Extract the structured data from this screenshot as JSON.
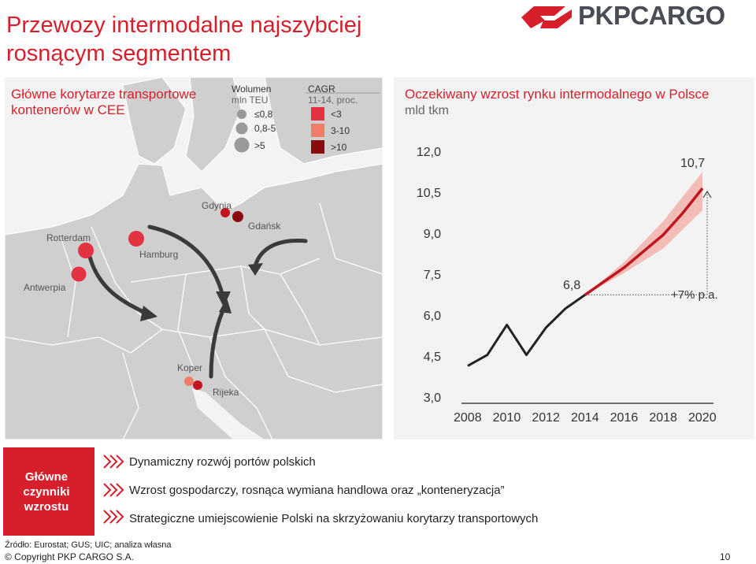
{
  "header": {
    "title": "Przewozy intermodalne najszybciej rosnącym segmentem",
    "logo_text": "PKPCARGO"
  },
  "map_panel": {
    "heading": "Główne korytarze transportowe kontenerów w CEE",
    "legend": {
      "volume_title": "Wolumen",
      "volume_unit": "mln TEU",
      "volume_items": [
        "≤0,8",
        "0,8-5",
        ">5"
      ],
      "cagr_title": "CAGR",
      "cagr_period": "11-14, proc.",
      "cagr_items": [
        "<3",
        "3-10",
        ">10"
      ],
      "cagr_colors": [
        "#e23343",
        "#f07c6a",
        "#8b0a0e"
      ]
    },
    "cities": {
      "gdynia": "Gdynia",
      "gdansk": "Gdańsk",
      "rotterdam": "Rotterdam",
      "hamburg": "Hamburg",
      "antwerpia": "Antwerpia",
      "koper": "Koper",
      "rijeka": "Rijeka"
    }
  },
  "chart_panel": {
    "heading": "Oczekiwany wzrost rynku intermodalnego w Polsce",
    "unit": "mld tkm",
    "value_2014_label": "6,8",
    "value_2020_label": "10,7",
    "growth_label": "+7% p.a."
  },
  "chart_data": {
    "type": "line",
    "title": "Oczekiwany wzrost rynku intermodalnego w Polsce",
    "ylabel": "mld tkm",
    "xlabel": "",
    "ylim": [
      3.0,
      12.0
    ],
    "xlim": [
      2008,
      2020
    ],
    "x_ticks": [
      "2008",
      "2010",
      "2012",
      "2014",
      "2016",
      "2018",
      "2020"
    ],
    "y_ticks": [
      "12,0",
      "10,5",
      "9,0",
      "7,5",
      "6,0",
      "4,5",
      "3,0"
    ],
    "series": [
      {
        "x": [
          2008,
          2009,
          2010,
          2011,
          2012,
          2013,
          2014
        ],
        "values": [
          4.2,
          4.6,
          5.7,
          4.6,
          5.6,
          6.3,
          6.8
        ],
        "color": "#222222"
      },
      {
        "x": [
          2014,
          2015,
          2016,
          2017,
          2018,
          2019,
          2020
        ],
        "values": [
          6.8,
          7.3,
          7.8,
          8.4,
          9.0,
          9.8,
          10.7
        ],
        "color": "#c0161f"
      }
    ],
    "forecast_band": {
      "x": [
        2014,
        2016,
        2018,
        2020
      ],
      "low": [
        6.8,
        7.6,
        8.5,
        9.9
      ],
      "high": [
        6.8,
        8.0,
        9.5,
        11.3
      ],
      "color": "#f1b2ac"
    },
    "annotations": [
      "6,8",
      "10,7",
      "+7% p.a."
    ],
    "grid": false
  },
  "drivers": {
    "title": "Główne czynniki wzrostu",
    "items": [
      "Dynamiczny rozwój portów polskich",
      "Wzrost gospodarczy, rosnąca wymiana handlowa oraz „konteneryzacja”",
      "Strategiczne umiejscowienie Polski na skrzyżowaniu korytarzy transportowych"
    ]
  },
  "footer": {
    "source": "Źródło: Eurostat; GUS; UIC; analiza własna",
    "copyright": "© Copyright PKP CARGO S.A.",
    "page": "10"
  }
}
